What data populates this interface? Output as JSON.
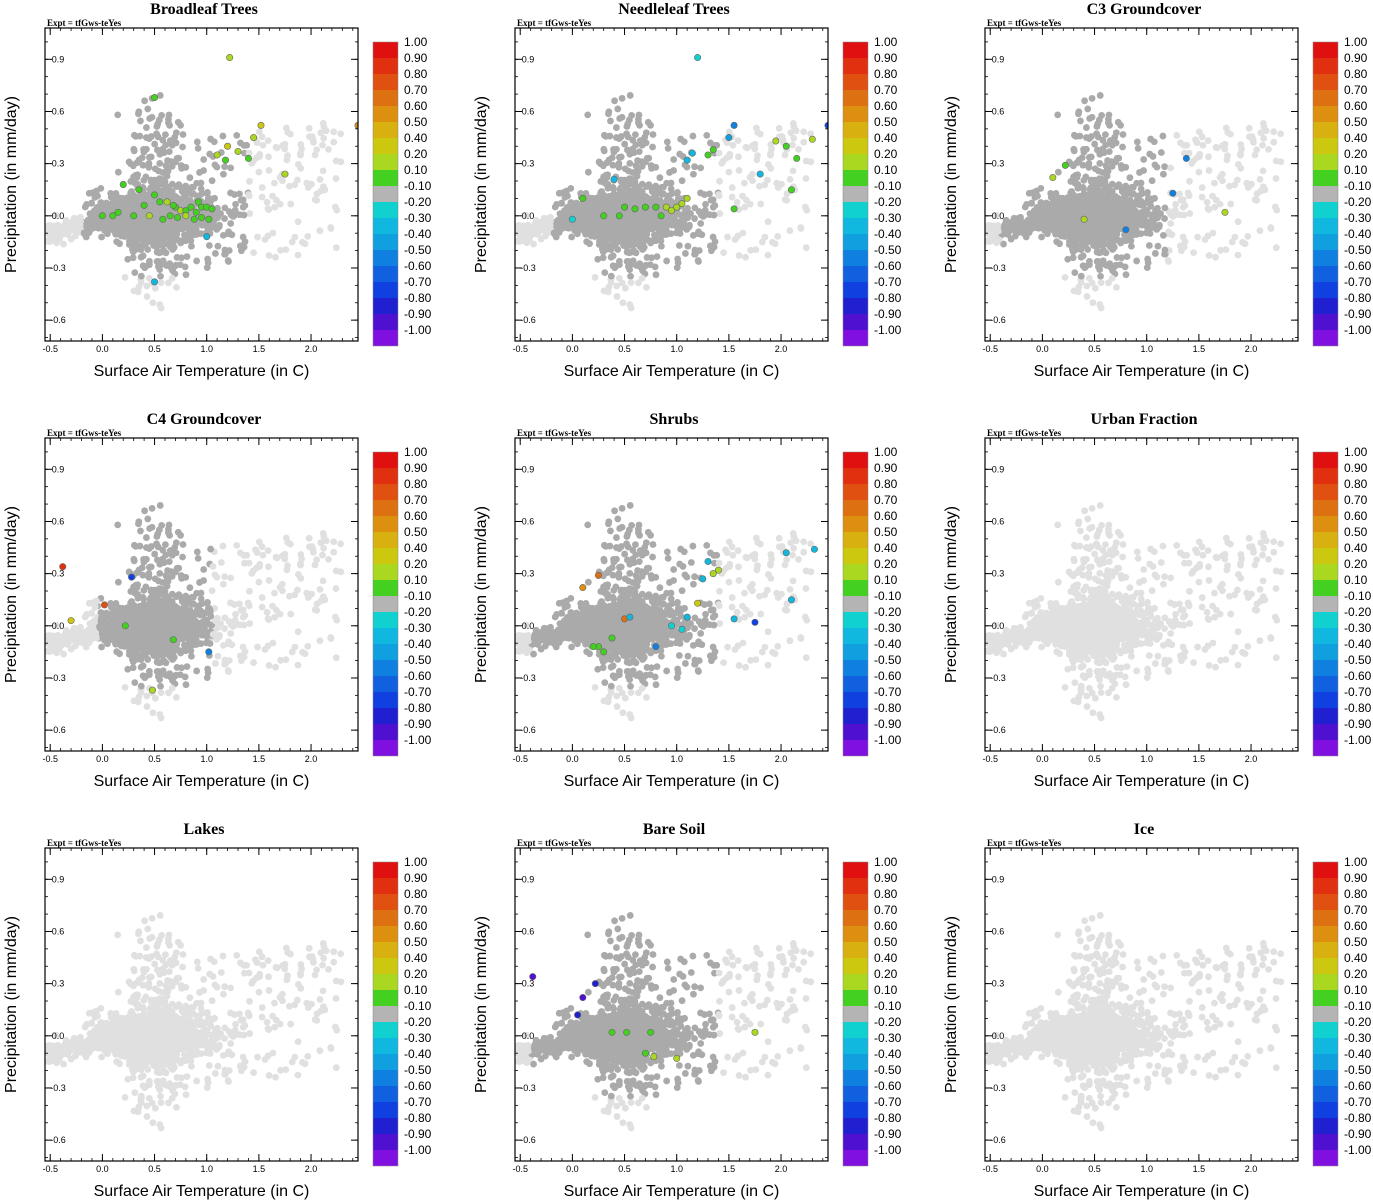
{
  "chart_data": {
    "type": "scatter",
    "expt_label": "Expt = tfGws-teYes",
    "xlabel": "Surface Air Temperature (in C)",
    "ylabel": "Precipitation (in mm/day)",
    "xlim": [
      -0.55,
      2.45
    ],
    "ylim": [
      -0.72,
      1.08
    ],
    "xticks": [
      "-0.5",
      "0.0",
      "0.5",
      "1.0",
      "1.5",
      "2.0"
    ],
    "xtick_values": [
      -0.5,
      0.0,
      0.5,
      1.0,
      1.5,
      2.0
    ],
    "yticks": [
      "0.9",
      "0.6",
      "0.3",
      "0.0",
      "-0.3",
      "-0.6"
    ],
    "ytick_values": [
      0.9,
      0.6,
      0.3,
      0.0,
      -0.3,
      -0.6
    ],
    "colorbar": {
      "labels": [
        "1.00",
        "0.90",
        "0.80",
        "0.70",
        "0.60",
        "0.50",
        "0.40",
        "0.20",
        "0.10",
        "-0.10",
        "-0.20",
        "-0.30",
        "-0.40",
        "-0.50",
        "-0.60",
        "-0.70",
        "-0.80",
        "-0.90",
        "-1.00"
      ],
      "colors": [
        "#e01010",
        "#e03010",
        "#e05010",
        "#dd7010",
        "#dd9010",
        "#d8b010",
        "#ccc810",
        "#aad820",
        "#44d020",
        "#b4b4b4",
        "#10d0d0",
        "#10b8e0",
        "#10a0e0",
        "#1080e0",
        "#1060e0",
        "#1040e0",
        "#2020d0",
        "#5010d0",
        "#8010e0"
      ]
    },
    "background": {
      "n": 1600,
      "seed": 12345,
      "core_center": [
        0.5,
        0.0
      ],
      "core_spread": [
        0.28,
        0.07
      ],
      "tail_start": [
        -0.6,
        -0.12
      ],
      "tail_end": [
        0.2,
        0.0
      ],
      "spike_x": [
        0.3,
        0.75
      ],
      "spike_y_range": [
        -0.55,
        0.7
      ],
      "outlier_x": [
        0.9,
        2.3
      ],
      "outlier_y": [
        -0.3,
        0.45
      ]
    },
    "panels": [
      {
        "title": "Broadleaf Trees",
        "grey_mode": "partial",
        "grey_region": {
          "x": [
            -0.2,
            1.6
          ],
          "y": [
            -0.35,
            0.75
          ]
        },
        "colored_points": [
          {
            "x": 1.22,
            "y": 0.91,
            "v": 0.2
          },
          {
            "x": 0.5,
            "y": 0.68,
            "v": 0.1
          },
          {
            "x": 1.52,
            "y": 0.52,
            "v": 0.4
          },
          {
            "x": 2.45,
            "y": 0.52,
            "v": 0.6
          },
          {
            "x": 1.45,
            "y": 0.45,
            "v": 0.3
          },
          {
            "x": 1.2,
            "y": 0.4,
            "v": 0.4
          },
          {
            "x": 1.3,
            "y": 0.37,
            "v": 0.3
          },
          {
            "x": 1.1,
            "y": 0.35,
            "v": 0.2
          },
          {
            "x": 1.4,
            "y": 0.33,
            "v": 0.1
          },
          {
            "x": 1.18,
            "y": 0.32,
            "v": 0.1
          },
          {
            "x": 1.75,
            "y": 0.24,
            "v": 0.3
          },
          {
            "x": 0.2,
            "y": 0.18,
            "v": 0.1
          },
          {
            "x": 0.35,
            "y": 0.15,
            "v": 0.1
          },
          {
            "x": 0.5,
            "y": 0.12,
            "v": 0.1
          },
          {
            "x": 0.55,
            "y": 0.08,
            "v": 0.1
          },
          {
            "x": 0.62,
            "y": 0.08,
            "v": 0.2
          },
          {
            "x": 0.7,
            "y": 0.05,
            "v": 0.1
          },
          {
            "x": 0.75,
            "y": 0.03,
            "v": 0.2
          },
          {
            "x": 0.8,
            "y": 0.03,
            "v": 0.1
          },
          {
            "x": 0.85,
            "y": 0.05,
            "v": 0.1
          },
          {
            "x": 0.9,
            "y": 0.02,
            "v": 0.1
          },
          {
            "x": 0.95,
            "y": 0.05,
            "v": 0.1
          },
          {
            "x": 1.0,
            "y": 0.05,
            "v": 0.1
          },
          {
            "x": 1.05,
            "y": 0.04,
            "v": 0.1
          },
          {
            "x": 0.3,
            "y": 0.0,
            "v": 0.1
          },
          {
            "x": 0.45,
            "y": 0.0,
            "v": 0.2
          },
          {
            "x": 0.58,
            "y": -0.02,
            "v": 0.1
          },
          {
            "x": 0.65,
            "y": 0.0,
            "v": 0.1
          },
          {
            "x": 0.72,
            "y": -0.01,
            "v": 0.1
          },
          {
            "x": 0.8,
            "y": 0.0,
            "v": 0.2
          },
          {
            "x": 0.88,
            "y": -0.02,
            "v": 0.1
          },
          {
            "x": 0.95,
            "y": -0.01,
            "v": 0.1
          },
          {
            "x": 1.02,
            "y": -0.02,
            "v": 0.1
          },
          {
            "x": 0.0,
            "y": 0.0,
            "v": 0.1
          },
          {
            "x": 0.1,
            "y": 0.0,
            "v": 0.1
          },
          {
            "x": 0.15,
            "y": 0.02,
            "v": 0.1
          },
          {
            "x": 0.4,
            "y": 0.06,
            "v": 0.1
          },
          {
            "x": 0.68,
            "y": 0.06,
            "v": 0.1
          },
          {
            "x": 0.92,
            "y": 0.08,
            "v": 0.1
          },
          {
            "x": 1.0,
            "y": -0.12,
            "v": -0.3
          },
          {
            "x": 0.5,
            "y": -0.38,
            "v": -0.3
          }
        ]
      },
      {
        "title": "Needleleaf Trees",
        "grey_mode": "partial",
        "grey_region": {
          "x": [
            -0.2,
            1.8
          ],
          "y": [
            -0.35,
            0.75
          ]
        },
        "colored_points": [
          {
            "x": 1.2,
            "y": 0.91,
            "v": -0.2
          },
          {
            "x": 2.45,
            "y": 0.52,
            "v": -0.7
          },
          {
            "x": 1.55,
            "y": 0.52,
            "v": -0.5
          },
          {
            "x": 1.5,
            "y": 0.45,
            "v": -0.4
          },
          {
            "x": 1.95,
            "y": 0.43,
            "v": 0.2
          },
          {
            "x": 2.3,
            "y": 0.44,
            "v": 0.2
          },
          {
            "x": 2.05,
            "y": 0.4,
            "v": 0.1
          },
          {
            "x": 2.15,
            "y": 0.33,
            "v": 0.1
          },
          {
            "x": 1.35,
            "y": 0.38,
            "v": 0.1
          },
          {
            "x": 1.15,
            "y": 0.36,
            "v": -0.3
          },
          {
            "x": 1.1,
            "y": 0.32,
            "v": -0.3
          },
          {
            "x": 1.3,
            "y": 0.35,
            "v": 0.1
          },
          {
            "x": 1.8,
            "y": 0.24,
            "v": -0.3
          },
          {
            "x": 2.1,
            "y": 0.15,
            "v": 0.1
          },
          {
            "x": 1.55,
            "y": 0.04,
            "v": 0.1
          },
          {
            "x": 0.4,
            "y": 0.21,
            "v": -0.3
          },
          {
            "x": 0.5,
            "y": 0.05,
            "v": 0.1
          },
          {
            "x": 0.6,
            "y": 0.04,
            "v": 0.1
          },
          {
            "x": 0.7,
            "y": 0.05,
            "v": 0.1
          },
          {
            "x": 0.8,
            "y": 0.05,
            "v": 0.1
          },
          {
            "x": 0.9,
            "y": 0.05,
            "v": 0.2
          },
          {
            "x": 1.0,
            "y": 0.05,
            "v": 0.2
          },
          {
            "x": 1.05,
            "y": 0.07,
            "v": 0.3
          },
          {
            "x": 0.95,
            "y": 0.03,
            "v": 0.2
          },
          {
            "x": 0.3,
            "y": 0.0,
            "v": 0.1
          },
          {
            "x": 0.45,
            "y": 0.0,
            "v": 0.1
          },
          {
            "x": 0.85,
            "y": 0.0,
            "v": 0.1
          },
          {
            "x": 0.1,
            "y": 0.1,
            "v": 0.1
          },
          {
            "x": 0.0,
            "y": -0.02,
            "v": -0.2
          },
          {
            "x": 1.1,
            "y": 0.1,
            "v": 0.2
          }
        ]
      },
      {
        "title": "C3 Groundcover",
        "grey_mode": "partial",
        "grey_region": {
          "x": [
            -0.6,
            1.2
          ],
          "y": [
            -0.35,
            0.75
          ]
        },
        "colored_points": [
          {
            "x": 1.38,
            "y": 0.33,
            "v": -0.5
          },
          {
            "x": 1.25,
            "y": 0.13,
            "v": -0.5
          },
          {
            "x": 0.22,
            "y": 0.29,
            "v": 0.1
          },
          {
            "x": 0.1,
            "y": 0.22,
            "v": 0.2
          },
          {
            "x": 1.75,
            "y": 0.02,
            "v": 0.2
          },
          {
            "x": 0.4,
            "y": -0.02,
            "v": 0.2
          },
          {
            "x": 0.8,
            "y": -0.08,
            "v": -0.5
          }
        ]
      },
      {
        "title": "C4 Groundcover",
        "grey_mode": "partial",
        "grey_region": {
          "x": [
            -0.05,
            1.05
          ],
          "y": [
            -0.35,
            0.75
          ]
        },
        "colored_points": [
          {
            "x": -0.38,
            "y": 0.34,
            "v": 0.9
          },
          {
            "x": 0.28,
            "y": 0.28,
            "v": -0.7
          },
          {
            "x": 0.02,
            "y": 0.12,
            "v": 0.8
          },
          {
            "x": -0.3,
            "y": 0.03,
            "v": 0.4
          },
          {
            "x": 0.22,
            "y": 0.0,
            "v": 0.1
          },
          {
            "x": 0.68,
            "y": -0.08,
            "v": 0.1
          },
          {
            "x": 1.02,
            "y": -0.15,
            "v": -0.5
          },
          {
            "x": 0.48,
            "y": -0.37,
            "v": 0.2
          }
        ]
      },
      {
        "title": "Shrubs",
        "grey_mode": "partial",
        "grey_region": {
          "x": [
            -0.6,
            2.45
          ],
          "y": [
            -0.35,
            0.75
          ]
        },
        "colored_points": [
          {
            "x": 0.25,
            "y": 0.29,
            "v": 0.7
          },
          {
            "x": 0.1,
            "y": 0.22,
            "v": 0.6
          },
          {
            "x": 0.5,
            "y": 0.04,
            "v": 0.7
          },
          {
            "x": 1.3,
            "y": 0.37,
            "v": -0.3
          },
          {
            "x": 1.4,
            "y": 0.32,
            "v": 0.3
          },
          {
            "x": 1.35,
            "y": 0.3,
            "v": 0.2
          },
          {
            "x": 1.25,
            "y": 0.27,
            "v": -0.3
          },
          {
            "x": 1.2,
            "y": 0.13,
            "v": 0.4
          },
          {
            "x": 2.32,
            "y": 0.44,
            "v": -0.3
          },
          {
            "x": 2.05,
            "y": 0.42,
            "v": -0.3
          },
          {
            "x": 2.1,
            "y": 0.15,
            "v": -0.3
          },
          {
            "x": 1.55,
            "y": 0.04,
            "v": -0.3
          },
          {
            "x": 1.75,
            "y": 0.02,
            "v": -0.7
          },
          {
            "x": 0.8,
            "y": -0.12,
            "v": -0.5
          },
          {
            "x": 0.25,
            "y": -0.12,
            "v": 0.1
          },
          {
            "x": 0.3,
            "y": -0.15,
            "v": 0.1
          },
          {
            "x": 0.38,
            "y": -0.07,
            "v": 0.1
          },
          {
            "x": 0.2,
            "y": -0.12,
            "v": 0.1
          },
          {
            "x": 1.05,
            "y": -0.02,
            "v": -0.2
          },
          {
            "x": 1.1,
            "y": 0.05,
            "v": -0.3
          },
          {
            "x": 0.55,
            "y": 0.05,
            "v": -0.3
          },
          {
            "x": 0.95,
            "y": 0.0,
            "v": -0.2
          }
        ]
      },
      {
        "title": "Urban Fraction",
        "grey_mode": "none",
        "colored_points": []
      },
      {
        "title": "Lakes",
        "grey_mode": "none",
        "colored_points": []
      },
      {
        "title": "Bare Soil",
        "grey_mode": "partial",
        "grey_region": {
          "x": [
            -0.55,
            1.7
          ],
          "y": [
            -0.35,
            0.75
          ]
        },
        "colored_points": [
          {
            "x": -0.38,
            "y": 0.34,
            "v": -0.9
          },
          {
            "x": 0.22,
            "y": 0.3,
            "v": -0.8
          },
          {
            "x": 0.1,
            "y": 0.22,
            "v": -0.9
          },
          {
            "x": 0.05,
            "y": 0.12,
            "v": -0.8
          },
          {
            "x": 0.38,
            "y": 0.02,
            "v": 0.1
          },
          {
            "x": 0.52,
            "y": 0.02,
            "v": 0.1
          },
          {
            "x": 0.75,
            "y": 0.02,
            "v": 0.1
          },
          {
            "x": 1.75,
            "y": 0.02,
            "v": 0.2
          },
          {
            "x": 0.7,
            "y": -0.1,
            "v": 0.1
          },
          {
            "x": 0.78,
            "y": -0.12,
            "v": 0.2
          },
          {
            "x": 1.0,
            "y": -0.13,
            "v": 0.3
          }
        ]
      },
      {
        "title": "Ice",
        "grey_mode": "none",
        "colored_points": []
      }
    ]
  }
}
